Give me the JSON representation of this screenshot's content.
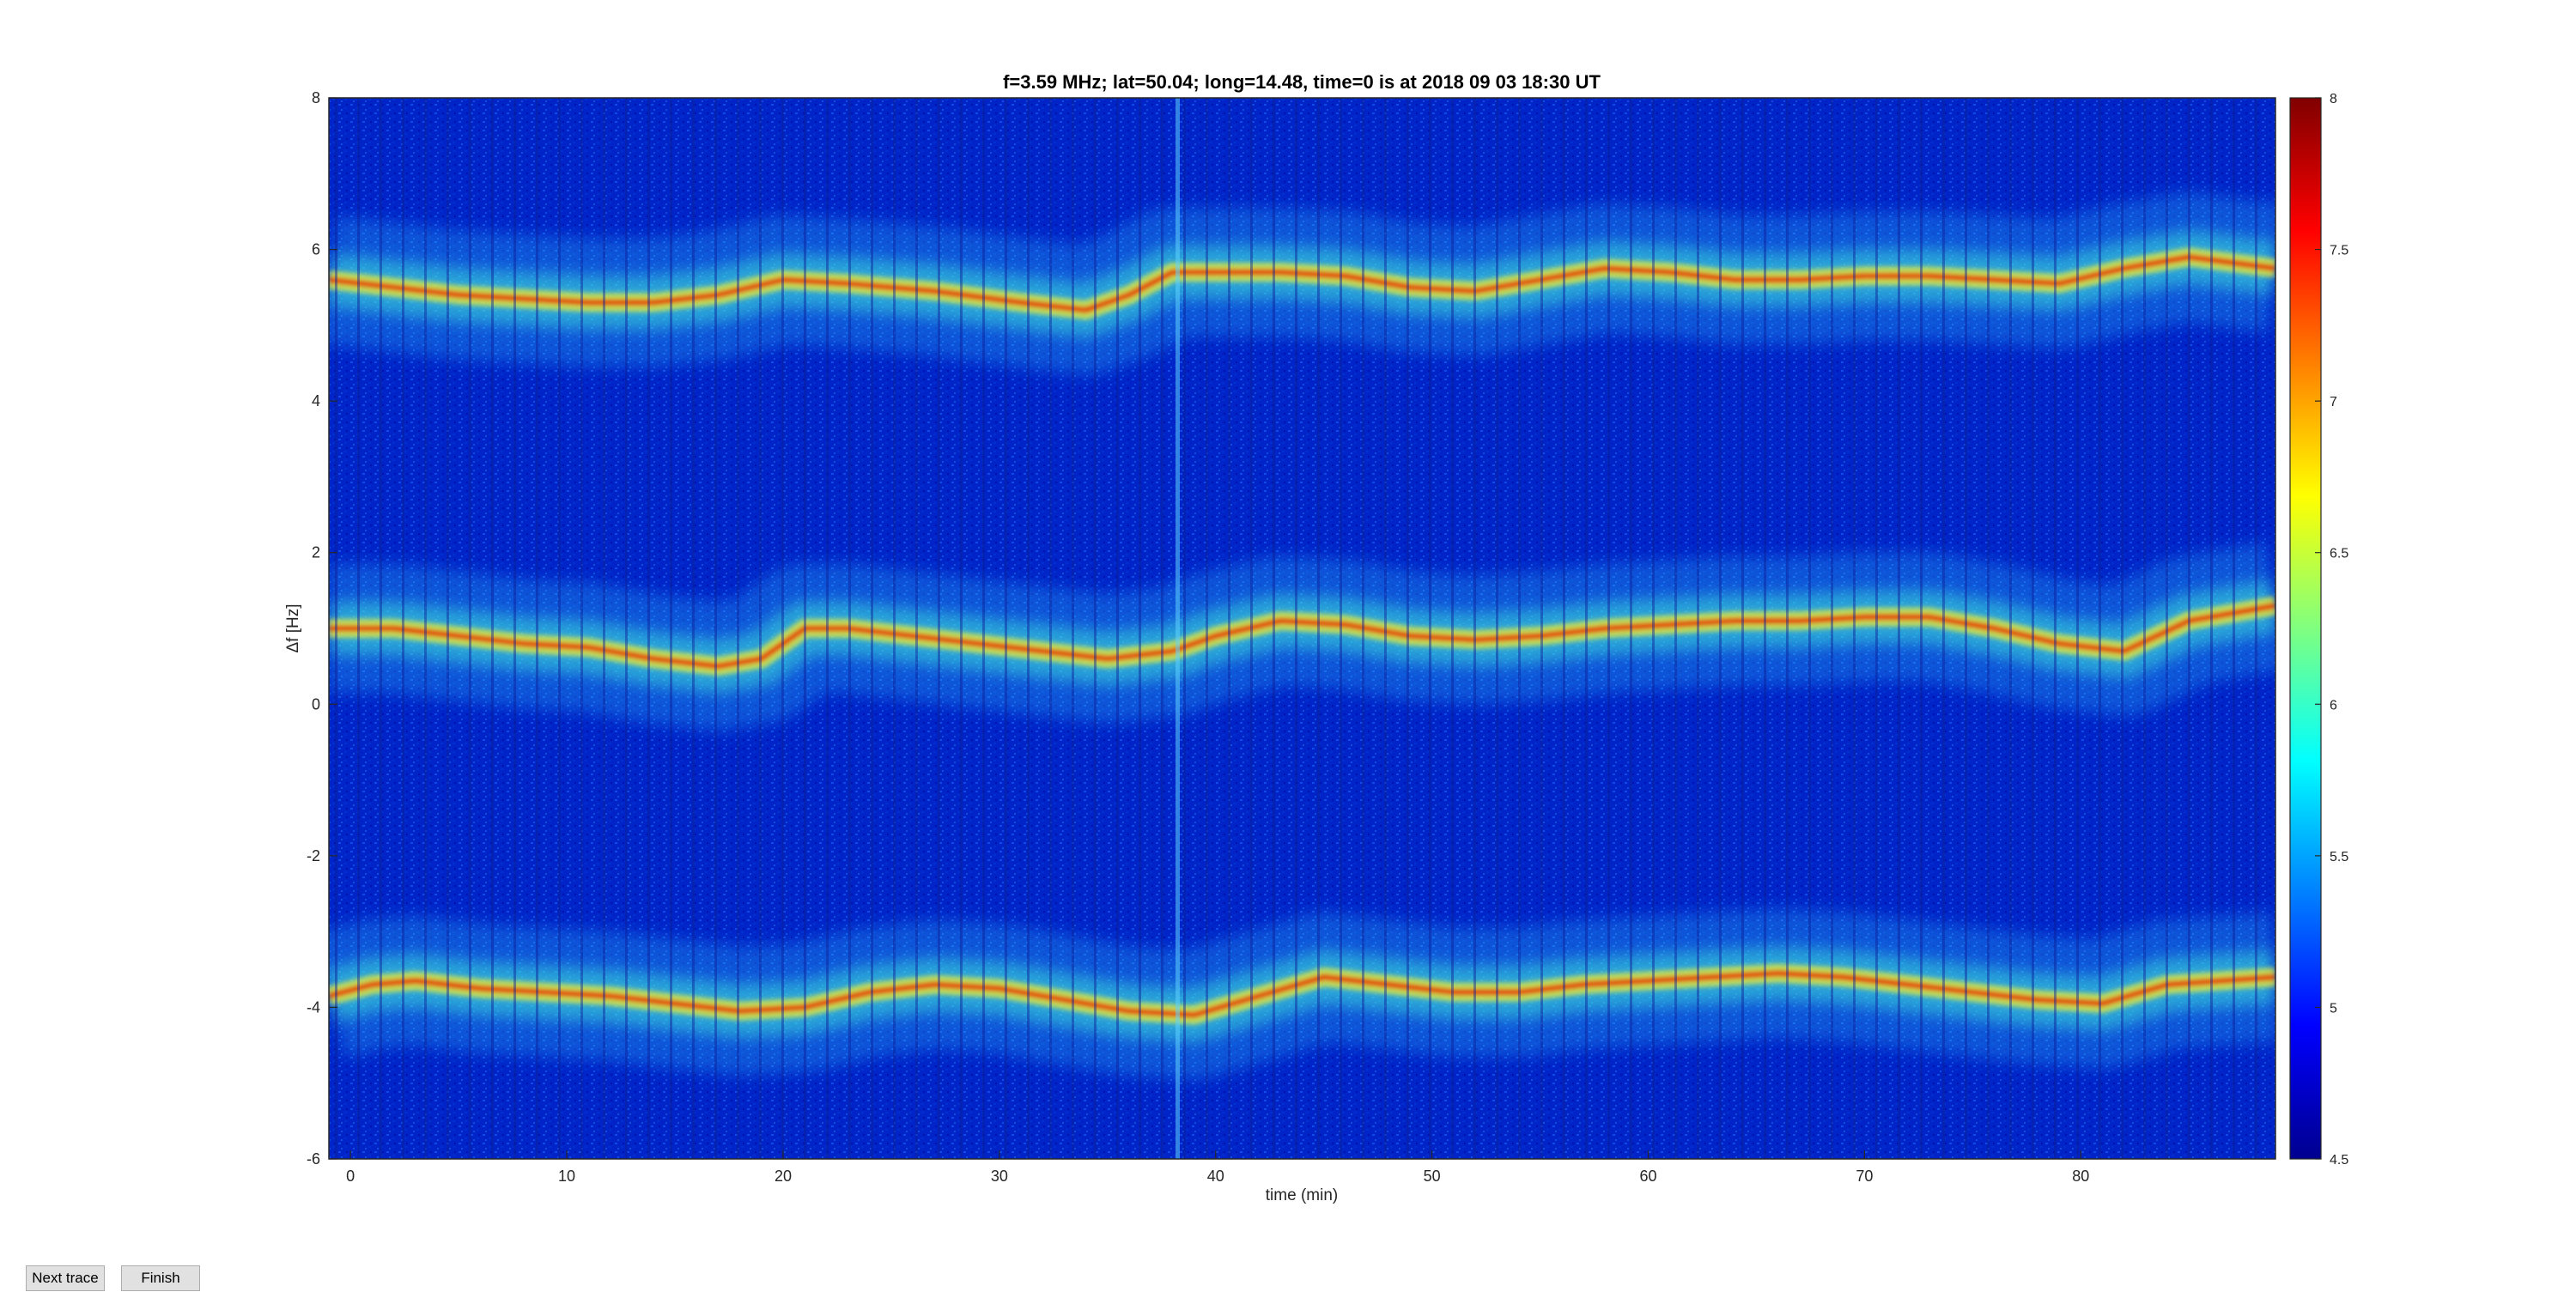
{
  "chart_data": {
    "type": "heatmap",
    "title": "f=3.59 MHz;  lat=50.04; long=14.48, time=0 is at 2018 09 03 18:30 UT",
    "xlabel": "time (min)",
    "ylabel": "Δf [Hz]",
    "xlim": [
      -1,
      89
    ],
    "ylim": [
      -6,
      8
    ],
    "xticks": [
      "0",
      "10",
      "20",
      "30",
      "40",
      "50",
      "60",
      "70",
      "80"
    ],
    "xtick_values": [
      0,
      10,
      20,
      30,
      40,
      50,
      60,
      70,
      80
    ],
    "yticks": [
      "-6",
      "-4",
      "-2",
      "0",
      "2",
      "4",
      "6",
      "8"
    ],
    "ytick_values": [
      -6,
      -4,
      -2,
      0,
      2,
      4,
      6,
      8
    ],
    "colormap": "jet",
    "clim": [
      4.5,
      8
    ],
    "colorbar_ticks": [
      "4.5",
      "5",
      "5.5",
      "6",
      "6.5",
      "7",
      "7.5",
      "8"
    ],
    "colorbar_tick_values": [
      4.5,
      5,
      5.5,
      6,
      6.5,
      7,
      7.5,
      8
    ],
    "traces": [
      {
        "time": [
          -1,
          2,
          5,
          8,
          11,
          14,
          17,
          20,
          23,
          27,
          31,
          34,
          36,
          38,
          40,
          43,
          46,
          49,
          52,
          55,
          58,
          61,
          64,
          67,
          70,
          73,
          76,
          79,
          82,
          85,
          89
        ],
        "df": [
          5.6,
          5.5,
          5.4,
          5.35,
          5.3,
          5.3,
          5.4,
          5.6,
          5.55,
          5.45,
          5.3,
          5.2,
          5.4,
          5.7,
          5.7,
          5.7,
          5.65,
          5.5,
          5.45,
          5.6,
          5.75,
          5.7,
          5.6,
          5.6,
          5.65,
          5.65,
          5.6,
          5.55,
          5.75,
          5.9,
          5.75
        ]
      },
      {
        "time": [
          -1,
          2,
          5,
          8,
          11,
          14,
          17,
          19,
          21,
          23,
          26,
          29,
          32,
          35,
          38,
          40,
          43,
          46,
          49,
          52,
          55,
          58,
          61,
          64,
          67,
          70,
          73,
          76,
          79,
          82,
          85,
          89
        ],
        "df": [
          1.0,
          1.0,
          0.9,
          0.8,
          0.75,
          0.6,
          0.5,
          0.6,
          1.0,
          1.0,
          0.9,
          0.8,
          0.7,
          0.6,
          0.7,
          0.9,
          1.1,
          1.05,
          0.9,
          0.85,
          0.9,
          1.0,
          1.05,
          1.1,
          1.1,
          1.15,
          1.15,
          1.0,
          0.8,
          0.7,
          1.1,
          1.3
        ]
      },
      {
        "time": [
          -1,
          1,
          3,
          6,
          9,
          12,
          15,
          18,
          21,
          24,
          27,
          30,
          33,
          36,
          39,
          42,
          45,
          48,
          51,
          54,
          57,
          60,
          63,
          66,
          69,
          72,
          75,
          78,
          81,
          84,
          89
        ],
        "df": [
          -3.85,
          -3.7,
          -3.65,
          -3.75,
          -3.8,
          -3.85,
          -3.95,
          -4.05,
          -4.0,
          -3.8,
          -3.7,
          -3.75,
          -3.9,
          -4.05,
          -4.1,
          -3.85,
          -3.6,
          -3.7,
          -3.8,
          -3.8,
          -3.7,
          -3.65,
          -3.6,
          -3.55,
          -3.6,
          -3.7,
          -3.8,
          -3.9,
          -3.95,
          -3.7,
          -3.6
        ]
      }
    ]
  },
  "buttons": {
    "next_trace": "Next trace",
    "finish": "Finish"
  }
}
